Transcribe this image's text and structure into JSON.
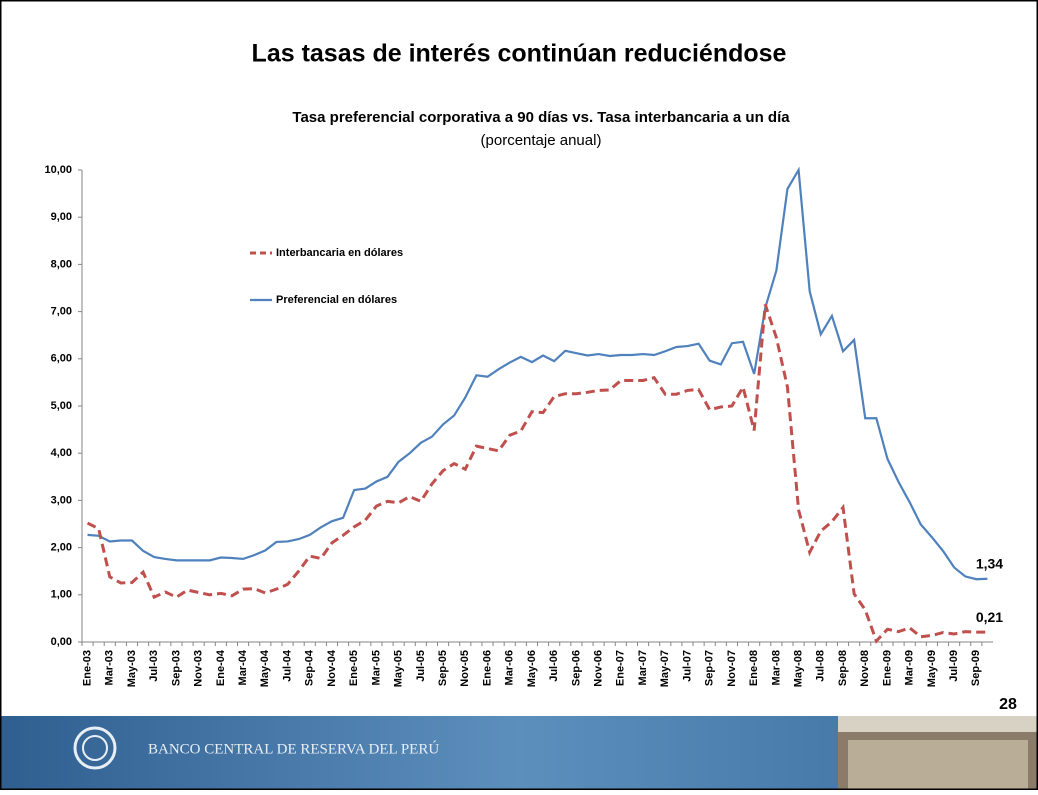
{
  "chart_data": {
    "type": "line",
    "slide_title": "Las tasas de interés continúan reduciéndose",
    "title": "Tasa preferencial corporativa a 90 días vs. Tasa interbancaria a un día",
    "subtitle": "(porcentaje anual)",
    "categories": [
      "Ene-03",
      null,
      "Mar-03",
      null,
      "May-03",
      null,
      "Jul-03",
      null,
      "Sep-03",
      null,
      "Nov-03",
      null,
      "Ene-04",
      null,
      "Mar-04",
      null,
      "May-04",
      null,
      "Jul-04",
      null,
      "Sep-04",
      null,
      "Nov-04",
      null,
      "Ene-05",
      null,
      "Mar-05",
      null,
      "May-05",
      null,
      "Jul-05",
      null,
      "Sep-05",
      null,
      "Nov-05",
      null,
      "Ene-06",
      null,
      "Mar-06",
      null,
      "May-06",
      null,
      "Jul-06",
      null,
      "Sep-06",
      null,
      "Nov-06",
      null,
      "Ene-07",
      null,
      "Mar-07",
      null,
      "May-07",
      null,
      "Jul-07",
      null,
      "Sep-07",
      null,
      "Nov-07",
      null,
      "Ene-08",
      null,
      "Mar-08",
      null,
      "May-08",
      null,
      "Jul-08",
      null,
      "Sep-08",
      null,
      "Nov-08",
      null,
      "Ene-09",
      null,
      "Mar-09",
      null,
      "May-09",
      null,
      "Jul-09",
      null,
      "Sep-09",
      null
    ],
    "series": [
      {
        "name": "Preferencial en dólares",
        "color": "#4f81bd",
        "dash": false,
        "values": [
          2.27,
          2.25,
          2.13,
          2.15,
          2.15,
          1.93,
          1.8,
          1.76,
          1.73,
          1.73,
          1.73,
          1.73,
          1.79,
          1.78,
          1.76,
          1.84,
          1.94,
          2.12,
          2.13,
          2.18,
          2.27,
          2.43,
          2.56,
          2.63,
          3.22,
          3.25,
          3.4,
          3.5,
          3.82,
          4.0,
          4.22,
          4.35,
          4.61,
          4.8,
          5.18,
          5.65,
          5.62,
          5.78,
          5.92,
          6.04,
          5.93,
          6.07,
          5.95,
          6.17,
          6.12,
          6.07,
          6.1,
          6.06,
          6.08,
          6.08,
          6.1,
          6.08,
          6.16,
          6.25,
          6.27,
          6.32,
          5.96,
          5.88,
          6.33,
          6.36,
          5.68,
          7.08,
          7.87,
          9.6,
          10.0,
          7.43,
          6.52,
          6.91,
          6.16,
          6.4,
          4.74,
          4.74,
          3.88,
          3.39,
          2.96,
          2.49,
          2.22,
          1.93,
          1.58,
          1.39,
          1.33,
          1.34
        ],
        "value_labels": [
          null,
          null,
          null,
          null,
          null,
          null,
          null,
          null,
          null,
          null,
          null,
          null,
          null,
          null,
          null,
          null,
          null,
          null,
          null,
          null,
          null,
          null,
          null,
          null,
          null,
          null,
          null,
          null,
          null,
          null,
          null,
          null,
          null,
          null,
          null,
          null,
          null,
          null,
          null,
          null,
          null,
          null,
          null,
          null,
          null,
          null,
          null,
          null,
          null,
          null,
          null,
          null,
          null,
          null,
          null,
          null,
          null,
          null,
          null,
          null,
          null,
          null,
          null,
          null,
          null,
          null,
          null,
          null,
          null,
          null,
          null,
          null,
          null,
          null,
          null,
          null,
          null,
          null,
          null,
          null,
          null,
          "1,34"
        ]
      },
      {
        "name": "Interbancaria en dólares",
        "color": "#c0504d",
        "dash": true,
        "values": [
          2.52,
          2.4,
          1.38,
          1.25,
          1.26,
          1.48,
          0.95,
          1.06,
          0.95,
          1.1,
          1.05,
          1.0,
          1.03,
          0.98,
          1.12,
          1.13,
          1.04,
          1.12,
          1.22,
          1.5,
          1.82,
          1.77,
          2.1,
          2.26,
          2.44,
          2.58,
          2.88,
          2.98,
          2.95,
          3.08,
          2.98,
          3.35,
          3.63,
          3.78,
          3.66,
          4.15,
          4.1,
          4.05,
          4.38,
          4.47,
          4.88,
          4.86,
          5.2,
          5.26,
          5.26,
          5.29,
          5.33,
          5.34,
          5.54,
          5.54,
          5.54,
          5.6,
          5.25,
          5.25,
          5.33,
          5.35,
          4.92,
          4.98,
          5.0,
          5.4,
          4.48,
          7.15,
          6.45,
          5.4,
          2.8,
          1.9,
          2.35,
          2.55,
          2.85,
          1.02,
          0.68,
          0.02,
          0.27,
          0.22,
          0.3,
          0.11,
          0.14,
          0.2,
          0.17,
          0.22,
          0.21,
          0.21
        ],
        "value_labels": [
          null,
          null,
          null,
          null,
          null,
          null,
          null,
          null,
          null,
          null,
          null,
          null,
          null,
          null,
          null,
          null,
          null,
          null,
          null,
          null,
          null,
          null,
          null,
          null,
          null,
          null,
          null,
          null,
          null,
          null,
          null,
          null,
          null,
          null,
          null,
          null,
          null,
          null,
          null,
          null,
          null,
          null,
          null,
          null,
          null,
          null,
          null,
          null,
          null,
          null,
          null,
          null,
          null,
          null,
          null,
          null,
          null,
          null,
          null,
          null,
          null,
          null,
          null,
          null,
          null,
          null,
          null,
          null,
          null,
          null,
          null,
          null,
          null,
          null,
          null,
          null,
          null,
          null,
          null,
          null,
          null,
          "0,21"
        ]
      }
    ],
    "ylim": [
      0,
      10
    ],
    "yticks": [
      {
        "value": 0,
        "label": "0,00"
      },
      {
        "value": 1,
        "label": "1,00"
      },
      {
        "value": 2,
        "label": "2,00"
      },
      {
        "value": 3,
        "label": "3,00"
      },
      {
        "value": 4,
        "label": "4,00"
      },
      {
        "value": 5,
        "label": "5,00"
      },
      {
        "value": 6,
        "label": "6,00"
      },
      {
        "value": 7,
        "label": "7,00"
      },
      {
        "value": 8,
        "label": "8,00"
      },
      {
        "value": 9,
        "label": "9,00"
      },
      {
        "value": 10,
        "label": "10,00"
      }
    ],
    "legend": "upper left",
    "grid": false
  },
  "footer": {
    "institution": "BANCO CENTRAL DE RESERVA DEL PERÚ",
    "page_number": "28"
  }
}
